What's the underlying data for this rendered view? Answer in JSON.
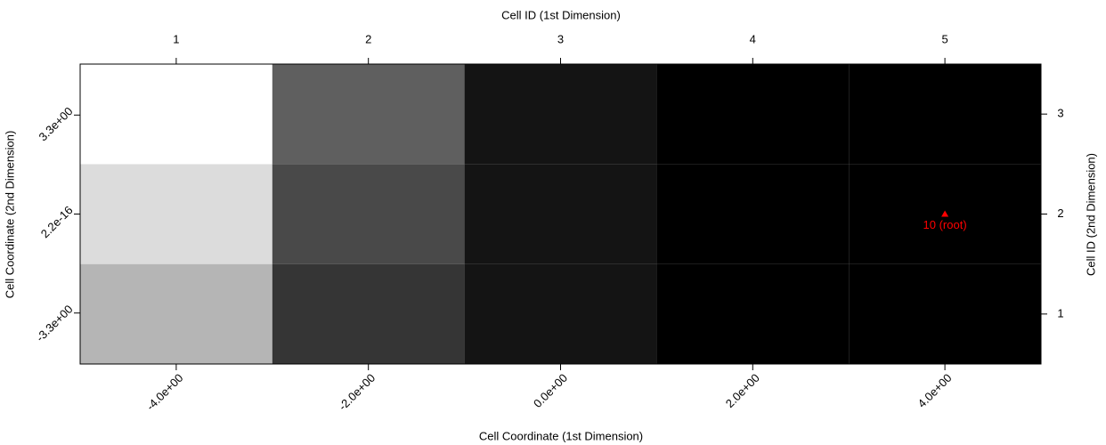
{
  "chart_data": {
    "type": "heatmap",
    "xlabel": "Cell Coordinate (1st Dimension)",
    "ylabel": "Cell Coordinate (2nd Dimension)",
    "x2label": "Cell ID (1st Dimension)",
    "y2label": "Cell ID (2nd Dimension)",
    "xlim": [
      -5,
      5
    ],
    "xticks": [
      {
        "value": -4,
        "label": "-4.0e+00"
      },
      {
        "value": -2,
        "label": "-2.0e+00"
      },
      {
        "value": 0,
        "label": "0.0e+00"
      },
      {
        "value": 2,
        "label": "2.0e+00"
      },
      {
        "value": 4,
        "label": "4.0e+00"
      }
    ],
    "ylim": [
      -5,
      5
    ],
    "yticks": [
      {
        "value": -3.3,
        "label": "-3.3e+00"
      },
      {
        "value": 2.2e-16,
        "label": "2.2e-16"
      },
      {
        "value": 3.3,
        "label": "3.3e+00"
      }
    ],
    "x2lim": [
      0.5,
      5.5
    ],
    "x2ticks": [
      1,
      2,
      3,
      4,
      5
    ],
    "y2lim": [
      0.5,
      3.5
    ],
    "y2ticks": [
      1,
      2,
      3
    ],
    "cell_colors": [
      [
        "#b5b5b5",
        "#353535",
        "#141414",
        "#000000",
        "#000000"
      ],
      [
        "#dcdcdc",
        "#494949",
        "#141414",
        "#000000",
        "#000000"
      ],
      [
        "#ffffff",
        "#5f5f5f",
        "#141414",
        "#000000",
        "#000000"
      ]
    ],
    "annotations": [
      {
        "text": "10 (root)",
        "x": 4,
        "y": 2.2e-16,
        "color": "#ff0000"
      }
    ]
  }
}
